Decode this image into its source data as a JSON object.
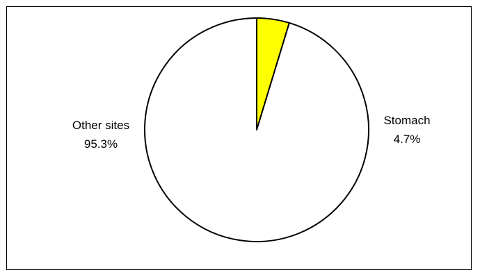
{
  "chart_data": {
    "type": "pie",
    "title": "",
    "start_angle_deg": 0,
    "direction": "clockwise",
    "slices": [
      {
        "name": "Stomach",
        "value": 4.7,
        "label": "4.7%",
        "color": "#ffff00"
      },
      {
        "name": "Other sites",
        "value": 95.3,
        "label": "95.3%",
        "color": "#ffffff"
      }
    ],
    "stroke_color": "#000000",
    "legend": "none"
  }
}
